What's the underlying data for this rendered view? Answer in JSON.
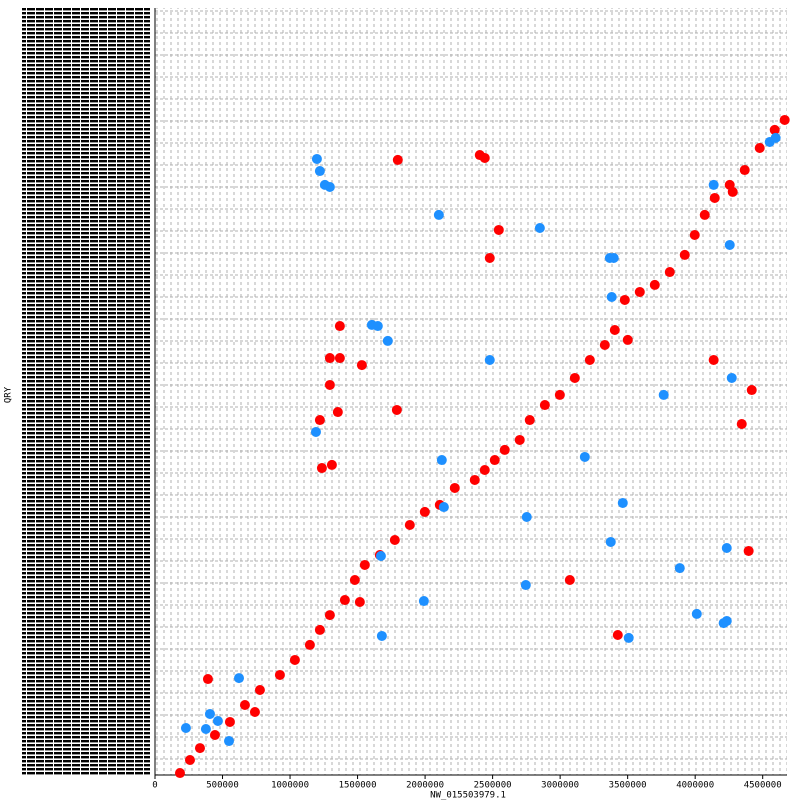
{
  "chart_data": {
    "type": "scatter",
    "x_label": "NW_015503979.1",
    "y_label": "QRY",
    "xlim": [
      0,
      4680000
    ],
    "ylim": [
      0,
      4700000
    ],
    "xticks": [
      0,
      500000,
      1000000,
      1500000,
      2000000,
      2500000,
      3000000,
      3500000,
      4000000,
      4500000
    ],
    "series": [
      {
        "color": "#ff0000",
        "x": [
          185000,
          259000,
          333000,
          444000,
          555000,
          666000,
          777000,
          925000,
          1036000,
          1147000,
          1221000,
          1295000,
          1406000,
          1480000,
          1554000,
          1665000,
          1776000,
          1887000,
          1998000,
          2109000,
          2220000,
          2368000,
          2442000,
          2516000,
          2590000,
          2701000,
          2775000,
          2887000,
          2998000,
          3109000,
          3220000,
          3331000,
          3405000,
          3479000,
          3590000,
          3701000,
          3812000,
          3923000,
          3997000,
          4071000,
          4145000,
          4256000,
          4367000,
          4478000,
          4589000,
          4663000,
          1798000,
          2405000,
          2442000,
          2546000,
          2479000,
          1369000,
          1295000,
          1369000,
          1532000,
          1295000,
          1354000,
          1221000,
          1791000,
          1236000,
          1310000,
          1517000,
          3072000,
          3427000,
          392000,
          740000,
          4278000,
          4137000,
          4419000,
          4345000,
          4396000,
          3501000
        ],
        "values": [
          12000,
          92000,
          165000,
          245000,
          325000,
          429000,
          521000,
          613000,
          705000,
          797000,
          889000,
          980000,
          1072000,
          1195000,
          1287000,
          1348000,
          1440000,
          1532000,
          1612000,
          1655000,
          1759000,
          1808000,
          1869000,
          1930000,
          1992000,
          2053000,
          2175000,
          2267000,
          2329000,
          2433000,
          2543000,
          2635000,
          2727000,
          2911000,
          2960000,
          3003000,
          3082000,
          3187000,
          3309000,
          3432000,
          3536000,
          3616000,
          3707000,
          3842000,
          3953000,
          4014000,
          3769000,
          3799000,
          3781000,
          3340000,
          3168000,
          2751000,
          2555000,
          2555000,
          2512000,
          2390000,
          2224000,
          2175000,
          2237000,
          1881000,
          1900000,
          1060000,
          1195000,
          858000,
          588000,
          386000,
          3573000,
          2543000,
          2359000,
          2151000,
          1373000,
          2666000
        ]
      },
      {
        "color": "#1e90ff",
        "x": [
          1199000,
          1221000,
          1258000,
          1295000,
          2102000,
          2850000,
          3368000,
          3397000,
          3382000,
          1606000,
          1650000,
          1724000,
          2479000,
          4271000,
          3767000,
          1192000,
          2124000,
          3183000,
          2139000,
          2753000,
          3464000,
          3375000,
          4234000,
          3886000,
          1673000,
          2746000,
          1991000,
          1680000,
          3508000,
          4012000,
          4211000,
          4234000,
          622000,
          407000,
          466000,
          229000,
          377000,
          548000,
          4137000,
          4256000,
          4552000,
          4596000
        ],
        "values": [
          3775000,
          3701000,
          3616000,
          3603000,
          3432000,
          3352000,
          3168000,
          3168000,
          2929000,
          2758000,
          2751000,
          2660000,
          2543000,
          2433000,
          2329000,
          2102000,
          1930000,
          1949000,
          1642000,
          1581000,
          1667000,
          1428000,
          1391000,
          1268000,
          1342000,
          1164000,
          1066000,
          852000,
          840000,
          987000,
          931000,
          944000,
          594000,
          374000,
          331000,
          288000,
          282000,
          208000,
          3616000,
          3248000,
          3879000,
          3904000
        ]
      }
    ]
  }
}
